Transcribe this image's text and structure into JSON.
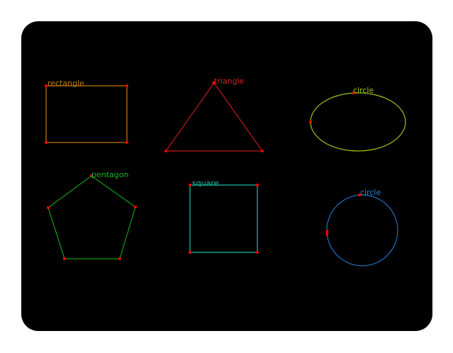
{
  "canvas": {
    "background": "#000000",
    "vertex_color": "#ff0000"
  },
  "shapes": [
    {
      "id": "rectangle",
      "label": "rectangle",
      "color": "#c77b0a",
      "label_color": "#c77b0a"
    },
    {
      "id": "triangle",
      "label": "triangle",
      "color": "#c21a14",
      "label_color": "#d32222"
    },
    {
      "id": "circle-ellipse",
      "label": "circle",
      "color": "#9cc21a",
      "label_color": "#9cc21a"
    },
    {
      "id": "pentagon",
      "label": "pentagon",
      "color": "#159b15",
      "label_color": "#22b322"
    },
    {
      "id": "square",
      "label": "square",
      "color": "#18c2a6",
      "label_color": "#18c2a6"
    },
    {
      "id": "circle",
      "label": "circle",
      "color": "#1f6fc2",
      "label_color": "#2a86d8"
    }
  ]
}
